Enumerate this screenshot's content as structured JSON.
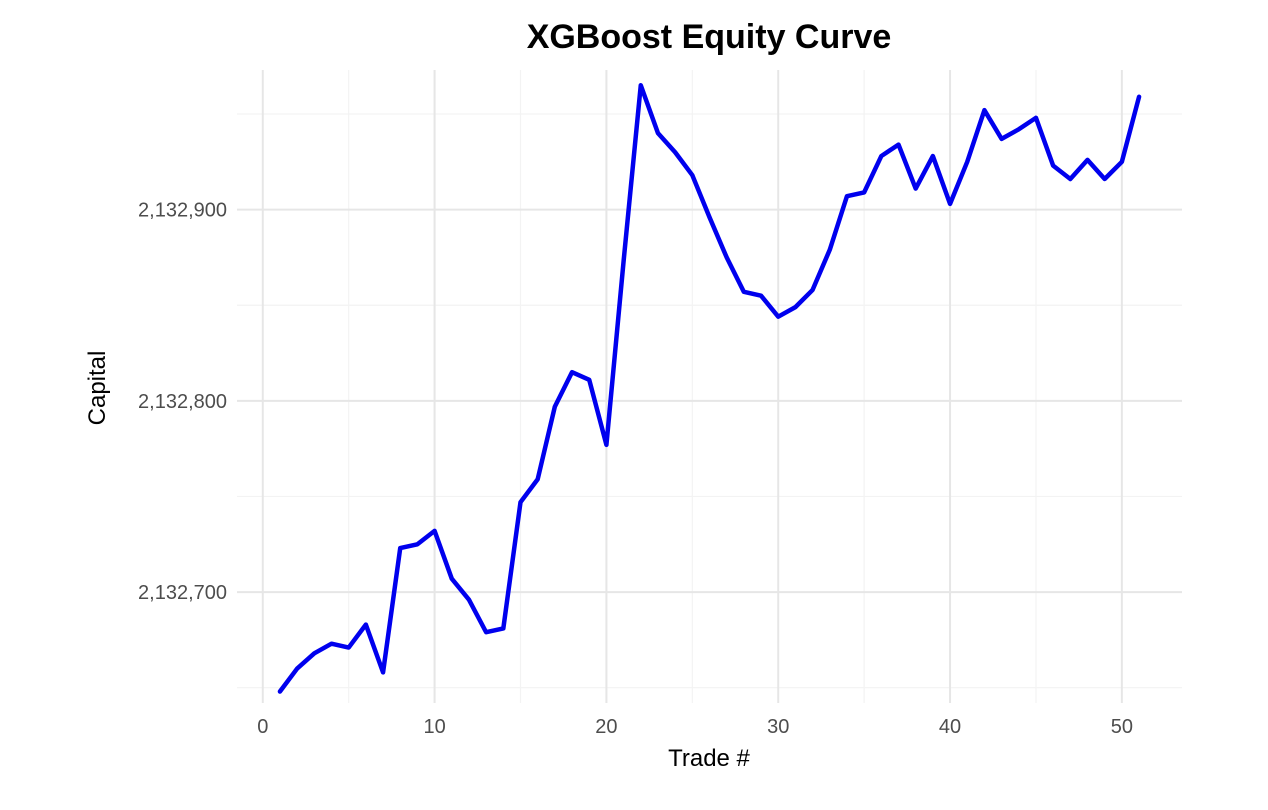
{
  "chart_data": {
    "type": "line",
    "title": "XGBoost Equity Curve",
    "xlabel": "Trade #",
    "ylabel": "Capital",
    "xlim": [
      -1.5,
      53.5
    ],
    "ylim": [
      2132642,
      2132973
    ],
    "x_ticks": [
      0,
      10,
      20,
      30,
      40,
      50
    ],
    "x_tick_labels": [
      "0",
      "10",
      "20",
      "30",
      "40",
      "50"
    ],
    "y_ticks": [
      2132700,
      2132800,
      2132900
    ],
    "y_tick_labels": [
      "2,132,700",
      "2,132,800",
      "2,132,900"
    ],
    "grid": true,
    "legend": "none",
    "series": [
      {
        "color": "#0000ee",
        "x": [
          1,
          2,
          3,
          4,
          5,
          6,
          7,
          8,
          9,
          10,
          11,
          12,
          13,
          14,
          15,
          16,
          17,
          18,
          19,
          20,
          21,
          22,
          23,
          24,
          25,
          26,
          27,
          28,
          29,
          30,
          31,
          32,
          33,
          34,
          35,
          36,
          37,
          38,
          39,
          40,
          41,
          42,
          43,
          44,
          45,
          46,
          47,
          48,
          49,
          50,
          51
        ],
        "values": [
          2132648,
          2132660,
          2132668,
          2132673,
          2132671,
          2132683,
          2132658,
          2132723,
          2132725,
          2132732,
          2132707,
          2132696,
          2132679,
          2132681,
          2132747,
          2132759,
          2132797,
          2132815,
          2132811,
          2132777,
          2132873,
          2132965,
          2132940,
          2132930,
          2132918,
          2132896,
          2132875,
          2132857,
          2132855,
          2132844,
          2132849,
          2132858,
          2132879,
          2132907,
          2132909,
          2132928,
          2132934,
          2132911,
          2132928,
          2132903,
          2132925,
          2132952,
          2132937,
          2132942,
          2132948,
          2132923,
          2132916,
          2132926,
          2132916,
          2132925,
          2132959
        ]
      }
    ]
  }
}
